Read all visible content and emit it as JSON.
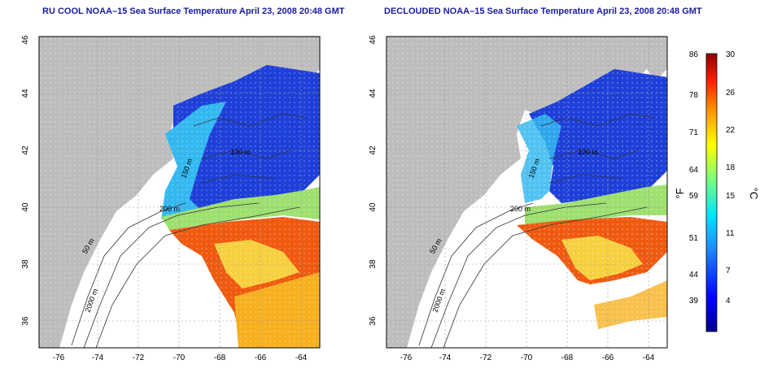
{
  "panels": [
    {
      "title": "RU COOL NOAA–15 Sea Surface Temperature April 23, 2008 20:48 GMT",
      "x_ticks": [
        "-76",
        "-74",
        "-72",
        "-70",
        "-68",
        "-66",
        "-64"
      ],
      "y_ticks": [
        "46",
        "44",
        "42",
        "40",
        "38",
        "36"
      ],
      "contour_labels": [
        "200 m",
        "50 m",
        "2000 m",
        "100 m",
        "150 m"
      ]
    },
    {
      "title": "DECLOUDED NOAA–15 Sea Surface Temperature April 23, 2008 20:48 GMT",
      "x_ticks": [
        "-76",
        "-74",
        "-72",
        "-70",
        "-68",
        "-66",
        "-64"
      ],
      "y_ticks": [
        "46",
        "44",
        "42",
        "40",
        "38",
        "36"
      ],
      "contour_labels": [
        "200 m",
        "50 m",
        "2000 m",
        "100 m",
        "150 m"
      ]
    }
  ],
  "colorbar": {
    "f_label": "°F",
    "c_label": "°C",
    "f_ticks": [
      "86",
      "78",
      "71",
      "64",
      "59",
      "51",
      "44",
      "39"
    ],
    "c_ticks": [
      "30",
      "26",
      "22",
      "18",
      "15",
      "11",
      "7",
      "4"
    ]
  },
  "colors": {
    "land": "#bdbdbd",
    "coast": "#ffffff",
    "title": "#1a1aa0",
    "cold": "#1e3fd8",
    "cool": "#33b8f0",
    "mild": "#9ee070",
    "warm": "#f7b020",
    "hot": "#ef5a10"
  }
}
